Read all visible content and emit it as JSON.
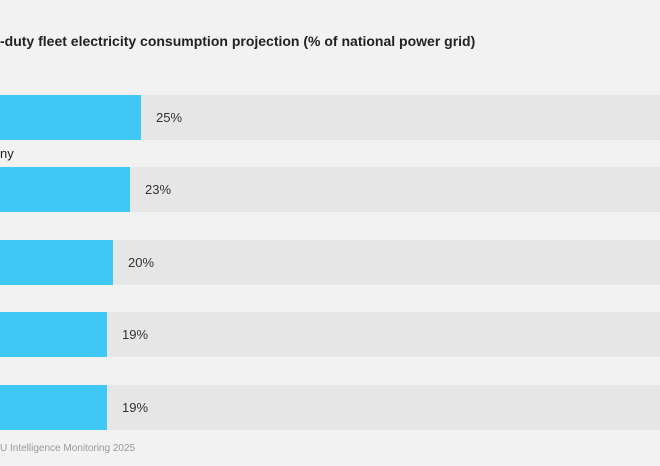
{
  "chart_data": {
    "type": "bar",
    "orientation": "horizontal",
    "title": "-duty fleet electricity consumption projection (% of national power grid)",
    "categories": [
      "",
      "ny",
      "",
      "",
      ""
    ],
    "values": [
      25,
      23,
      20,
      19,
      19
    ],
    "value_labels": [
      "25%",
      "23%",
      "20%",
      "19%",
      "19%"
    ],
    "unit": "%",
    "xlim": [
      0,
      100
    ],
    "grid": false,
    "legend": "none",
    "colors": {
      "bar": "#40c8f4",
      "track": "#e6e6e6",
      "background": "#f2f2f2"
    }
  },
  "source": "U Intelligence Monitoring 2025"
}
